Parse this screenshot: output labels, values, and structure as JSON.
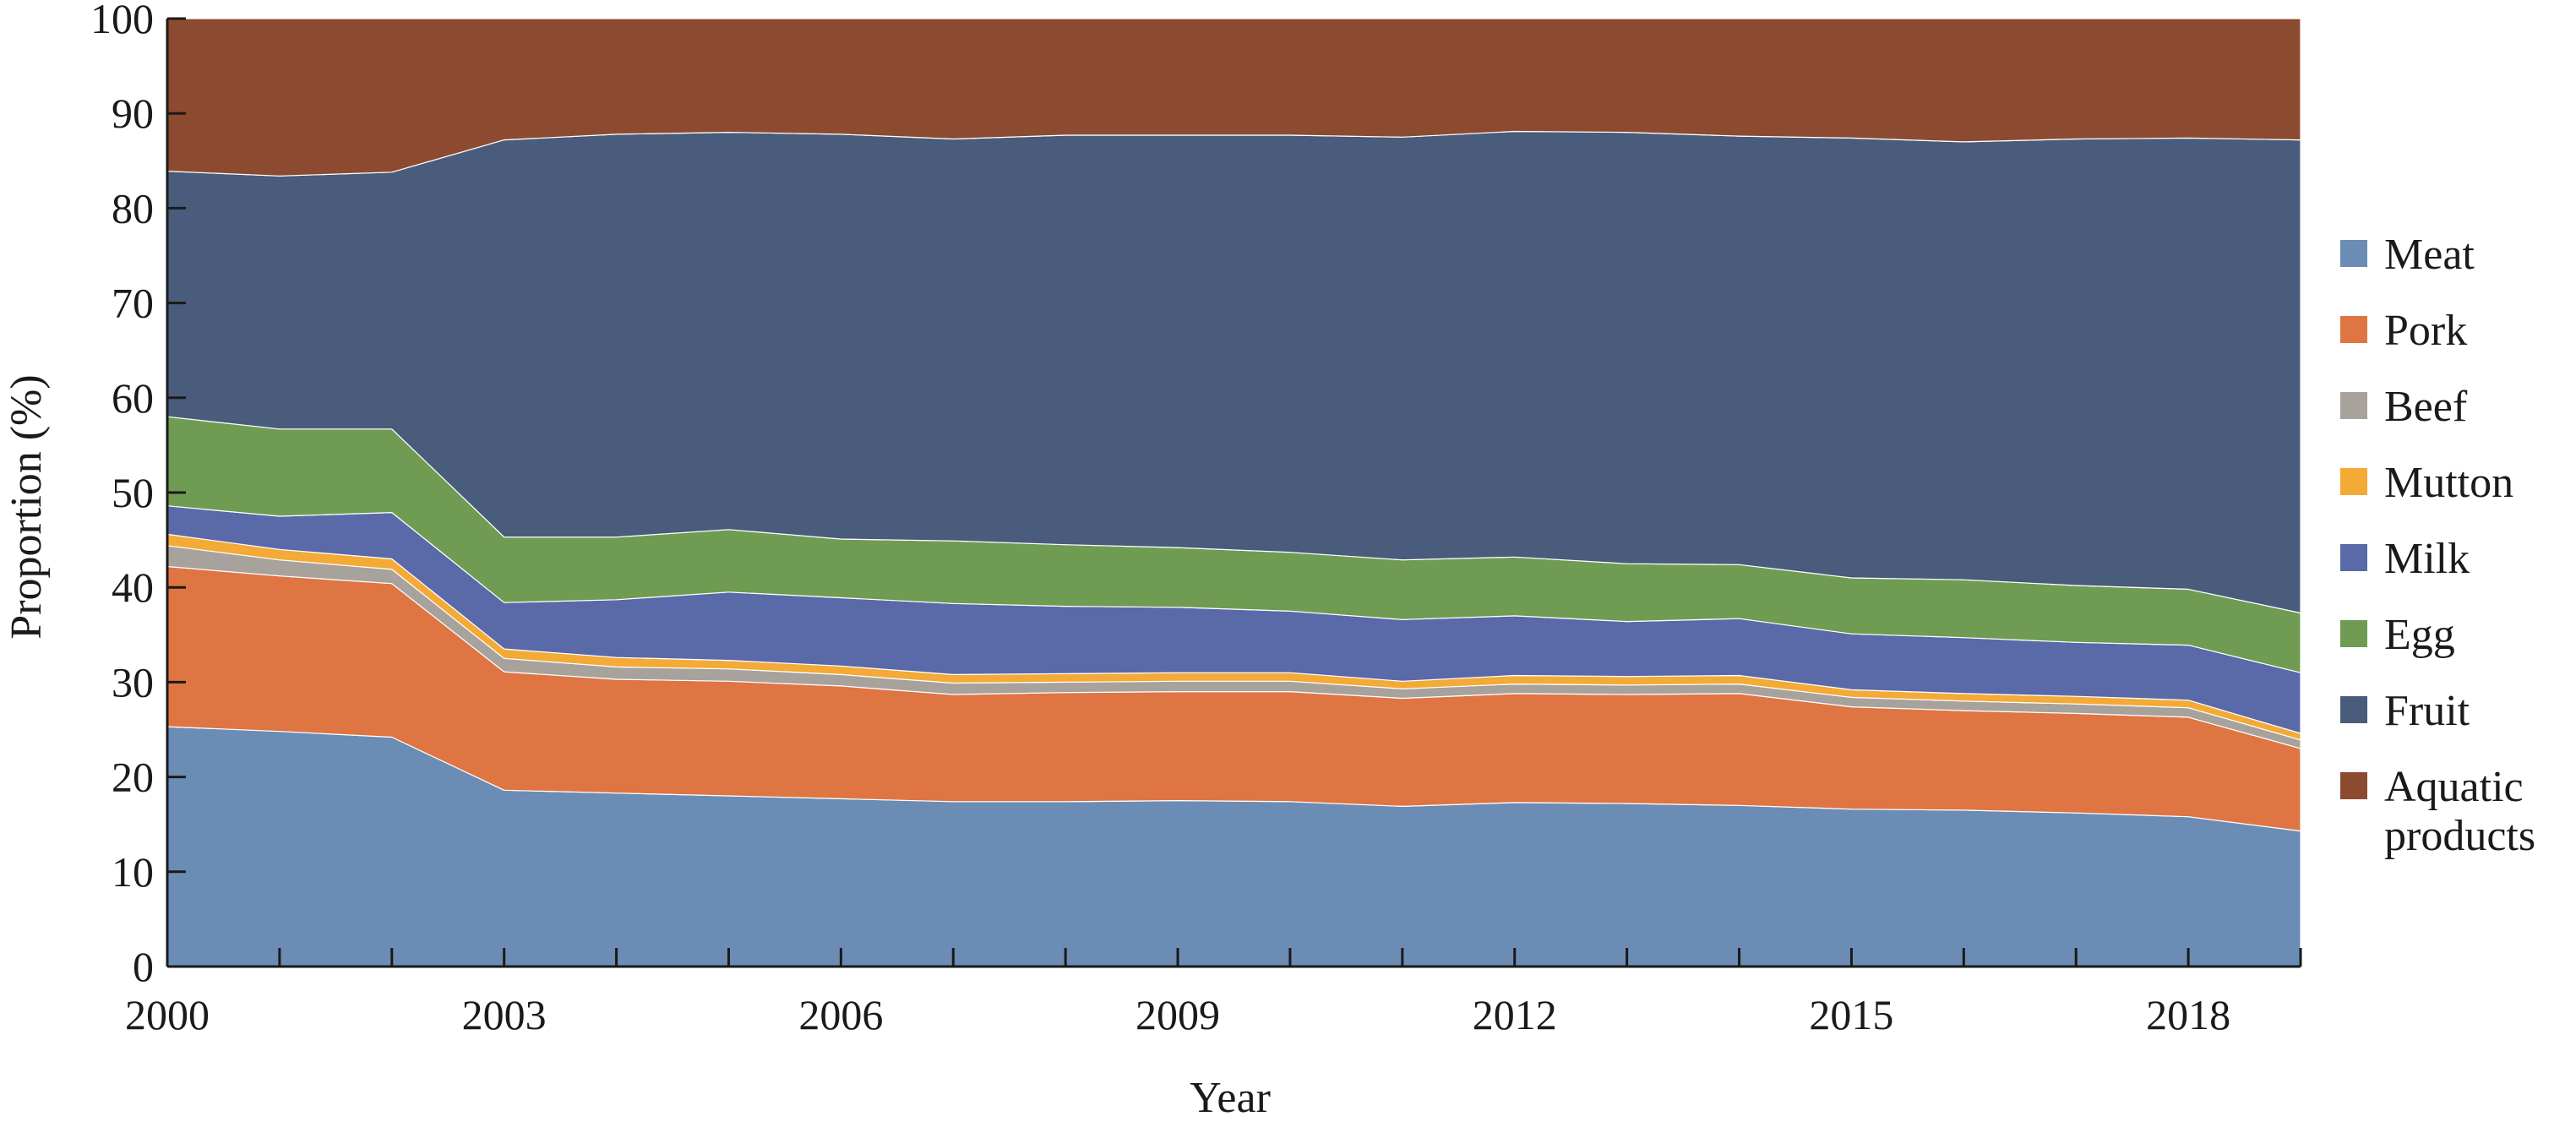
{
  "chart_data": {
    "type": "area",
    "stacked": true,
    "xlabel": "Year",
    "ylabel": "Proportion (%)",
    "ylim": [
      0,
      100
    ],
    "xlim": [
      2000,
      2019
    ],
    "yticks": [
      0,
      10,
      20,
      30,
      40,
      50,
      60,
      70,
      80,
      90,
      100
    ],
    "xticks": [
      2000,
      2003,
      2006,
      2009,
      2012,
      2015,
      2018
    ],
    "grid": false,
    "legend_position": "right",
    "x": [
      2000,
      2001,
      2002,
      2003,
      2004,
      2005,
      2006,
      2007,
      2008,
      2009,
      2010,
      2011,
      2012,
      2013,
      2014,
      2015,
      2016,
      2017,
      2018,
      2019
    ],
    "series": [
      {
        "name": "Meat",
        "color": "#6b8cb5",
        "values": [
          25.3,
          24.8,
          24.2,
          18.6,
          18.3,
          18.0,
          17.7,
          17.4,
          17.4,
          17.5,
          17.4,
          16.9,
          17.3,
          17.2,
          17.0,
          16.6,
          16.5,
          16.2,
          15.8,
          14.3
        ]
      },
      {
        "name": "Pork",
        "color": "#df7543",
        "values": [
          16.9,
          16.4,
          16.2,
          12.5,
          12.0,
          12.1,
          11.9,
          11.3,
          11.5,
          11.5,
          11.6,
          11.4,
          11.5,
          11.5,
          11.8,
          10.8,
          10.5,
          10.5,
          10.5,
          8.7
        ]
      },
      {
        "name": "Beef",
        "color": "#a8a29c",
        "values": [
          2.2,
          1.7,
          1.5,
          1.4,
          1.3,
          1.3,
          1.2,
          1.2,
          1.1,
          1.1,
          1.1,
          1.0,
          1.0,
          1.0,
          1.0,
          1.0,
          1.0,
          1.0,
          1.0,
          0.9
        ]
      },
      {
        "name": "Mutton",
        "color": "#f3aa36",
        "values": [
          1.2,
          1.1,
          1.1,
          1.0,
          1.0,
          0.9,
          0.9,
          0.9,
          0.9,
          0.9,
          0.9,
          0.8,
          0.9,
          0.9,
          0.9,
          0.8,
          0.8,
          0.8,
          0.8,
          0.7
        ]
      },
      {
        "name": "Milk",
        "color": "#5a69a8",
        "values": [
          3.0,
          3.5,
          4.9,
          4.9,
          6.1,
          7.2,
          7.2,
          7.5,
          7.1,
          6.9,
          6.5,
          6.5,
          6.3,
          5.8,
          6.0,
          5.9,
          5.9,
          5.7,
          5.8,
          6.4
        ]
      },
      {
        "name": "Egg",
        "color": "#6f9c52",
        "values": [
          9.4,
          9.2,
          8.8,
          6.9,
          6.6,
          6.6,
          6.2,
          6.6,
          6.5,
          6.3,
          6.2,
          6.3,
          6.2,
          6.1,
          5.7,
          5.9,
          6.1,
          6.0,
          5.9,
          6.3
        ]
      },
      {
        "name": "Fruit",
        "color": "#4a5c7c",
        "values": [
          25.9,
          26.7,
          27.1,
          41.9,
          42.5,
          41.9,
          42.7,
          42.4,
          43.2,
          43.5,
          44.0,
          44.6,
          44.9,
          45.5,
          45.2,
          46.4,
          46.2,
          47.1,
          47.6,
          49.9
        ]
      },
      {
        "name": "Aquatic products",
        "legend_lines": [
          "Aquatic",
          "products"
        ],
        "color": "#8c4b30",
        "values": [
          16.1,
          16.6,
          16.2,
          12.8,
          12.2,
          12.0,
          12.2,
          12.7,
          12.3,
          12.3,
          12.3,
          12.5,
          11.9,
          12.0,
          12.4,
          12.6,
          13.0,
          12.7,
          12.6,
          12.8
        ]
      }
    ]
  }
}
